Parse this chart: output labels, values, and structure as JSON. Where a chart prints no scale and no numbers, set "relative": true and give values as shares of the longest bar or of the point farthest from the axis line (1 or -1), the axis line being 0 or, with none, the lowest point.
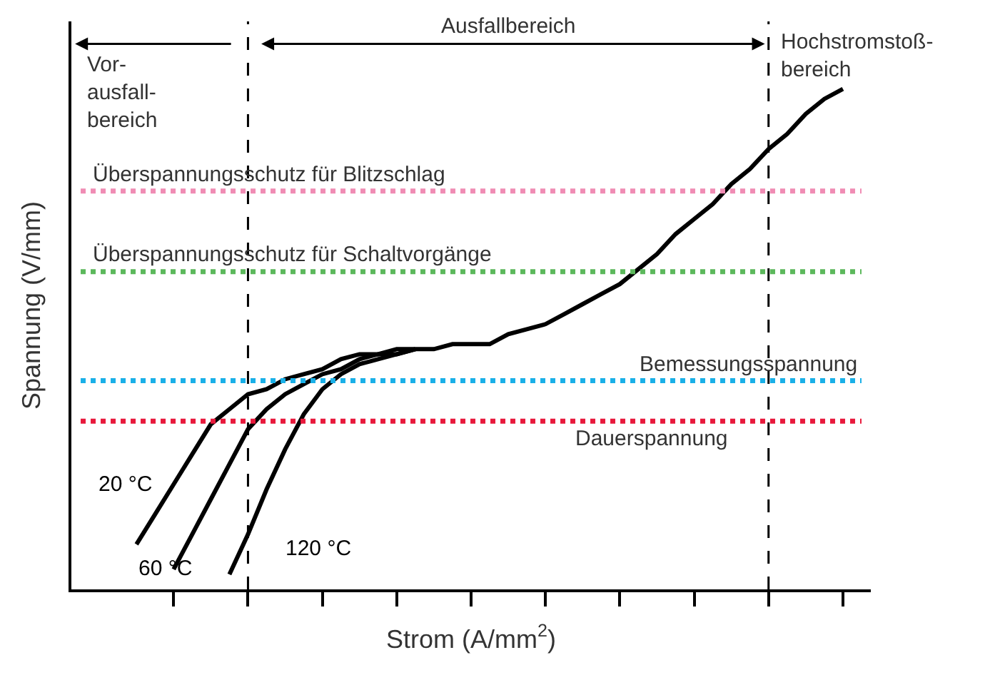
{
  "chart_data": {
    "type": "line",
    "relative": true,
    "xlabel": "Strom (A/mm$^{2}$)",
    "ylabel": "Spannung (V/mm)",
    "categories": [
      null,
      null,
      null,
      null,
      null,
      null,
      null,
      null,
      null,
      null,
      null,
      null,
      null,
      null,
      null,
      null,
      null,
      null,
      null,
      null,
      null,
      null,
      null,
      null,
      null,
      null,
      null,
      null,
      null,
      null,
      null,
      null,
      null,
      null,
      null,
      null,
      null,
      null,
      null,
      null,
      null,
      null,
      null
    ],
    "legend": false,
    "marker": "none",
    "line_style": "solid",
    "series": [
      {
        "name": "20 °C",
        "color": "#000000",
        "values": [
          null,
          null,
          null,
          0.09,
          0.15,
          0.21,
          0.27,
          0.33,
          0.36,
          0.39,
          0.4,
          0.42,
          0.43,
          0.44,
          0.46,
          0.47,
          0.47,
          0.48,
          0.48,
          0.48,
          0.49,
          0.49,
          0.49,
          0.51,
          0.52,
          0.53,
          0.55,
          0.57,
          0.59,
          0.61,
          0.64,
          0.67,
          0.71,
          0.74,
          0.77,
          0.81,
          0.84,
          0.88,
          0.91,
          0.95,
          0.98,
          1,
          null
        ]
      },
      {
        "name": "60 °C",
        "color": "#000000",
        "values": [
          null,
          null,
          null,
          null,
          null,
          0.04,
          0.11,
          0.18,
          0.25,
          0.32,
          0.36,
          0.39,
          0.41,
          0.43,
          0.44,
          0.46,
          0.47,
          0.47,
          0.48,
          null,
          null,
          null,
          null,
          null,
          null,
          null,
          null,
          null,
          null,
          null,
          null,
          null,
          null,
          null,
          null,
          null,
          null,
          null,
          null,
          null,
          null,
          null,
          null
        ]
      },
      {
        "name": "120 °C",
        "color": "#000000",
        "values": [
          null,
          null,
          null,
          null,
          null,
          null,
          null,
          null,
          0.03,
          0.11,
          0.2,
          0.28,
          0.35,
          0.4,
          0.43,
          0.45,
          0.46,
          0.47,
          0.48,
          null,
          null,
          null,
          null,
          null,
          null,
          null,
          null,
          null,
          null,
          null,
          null,
          null,
          null,
          null,
          null,
          null,
          null,
          null,
          null,
          null,
          null,
          null,
          null
        ]
      },
      {
        "name": "Dauerspannung",
        "color": "#e8193c",
        "line_style": "dotted",
        "values": [
          0.336,
          0.336,
          0.336,
          0.336,
          0.336,
          0.336,
          0.336,
          0.336,
          0.336,
          0.336,
          0.336,
          0.336,
          0.336,
          0.336,
          0.336,
          0.336,
          0.336,
          0.336,
          0.336,
          0.336,
          0.336,
          0.336,
          0.336,
          0.336,
          0.336,
          0.336,
          0.336,
          0.336,
          0.336,
          0.336,
          0.336,
          0.336,
          0.336,
          0.336,
          0.336,
          0.336,
          0.336,
          0.336,
          0.336,
          0.336,
          0.336,
          0.336,
          0.336
        ]
      },
      {
        "name": "Bemessungsspannung",
        "color": "#1ab0e8",
        "line_style": "dotted",
        "values": [
          0.417,
          0.417,
          0.417,
          0.417,
          0.417,
          0.417,
          0.417,
          0.417,
          0.417,
          0.417,
          0.417,
          0.417,
          0.417,
          0.417,
          0.417,
          0.417,
          0.417,
          0.417,
          0.417,
          0.417,
          0.417,
          0.417,
          0.417,
          0.417,
          0.417,
          0.417,
          0.417,
          0.417,
          0.417,
          0.417,
          0.417,
          0.417,
          0.417,
          0.417,
          0.417,
          0.417,
          0.417,
          0.417,
          0.417,
          0.417,
          0.417,
          0.417,
          0.417
        ]
      },
      {
        "name": "Überspannungsschutz für Schaltvorgänge",
        "color": "#5cb85c",
        "line_style": "dotted",
        "values": [
          0.635,
          0.635,
          0.635,
          0.635,
          0.635,
          0.635,
          0.635,
          0.635,
          0.635,
          0.635,
          0.635,
          0.635,
          0.635,
          0.635,
          0.635,
          0.635,
          0.635,
          0.635,
          0.635,
          0.635,
          0.635,
          0.635,
          0.635,
          0.635,
          0.635,
          0.635,
          0.635,
          0.635,
          0.635,
          0.635,
          0.635,
          0.635,
          0.635,
          0.635,
          0.635,
          0.635,
          0.635,
          0.635,
          0.635,
          0.635,
          0.635,
          0.635,
          0.635
        ]
      },
      {
        "name": "Überspannungsschutz für Blitzschlag",
        "color": "#f08cb4",
        "line_style": "dotted",
        "values": [
          0.796,
          0.796,
          0.796,
          0.796,
          0.796,
          0.796,
          0.796,
          0.796,
          0.796,
          0.796,
          0.796,
          0.796,
          0.796,
          0.796,
          0.796,
          0.796,
          0.796,
          0.796,
          0.796,
          0.796,
          0.796,
          0.796,
          0.796,
          0.796,
          0.796,
          0.796,
          0.796,
          0.796,
          0.796,
          0.796,
          0.796,
          0.796,
          0.796,
          0.796,
          0.796,
          0.796,
          0.796,
          0.796,
          0.796,
          0.796,
          0.796,
          0.796,
          0.796
        ]
      }
    ],
    "annotations": [
      "Vor-\nausfall-\nbereich",
      "Ausfallbereich",
      "Hochstromstoß-\nbereich"
    ]
  }
}
